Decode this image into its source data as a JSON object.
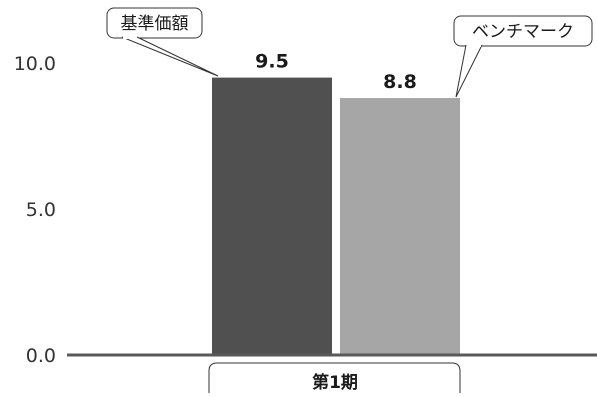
{
  "chart_data": {
    "type": "bar",
    "categories": [
      "第1期"
    ],
    "series": [
      {
        "name": "基準価額",
        "values": [
          9.5
        ],
        "color": "#505050"
      },
      {
        "name": "ベンチマーク",
        "values": [
          8.8
        ],
        "color": "#a6a6a6"
      }
    ],
    "yticks": [
      "0.0",
      "5.0",
      "10.0"
    ],
    "ylim": [
      0,
      10.5
    ],
    "grid": false,
    "legend_placement": "callouts-above-bars",
    "axis_color": "#595959",
    "text_color": "#1a1a1a"
  }
}
